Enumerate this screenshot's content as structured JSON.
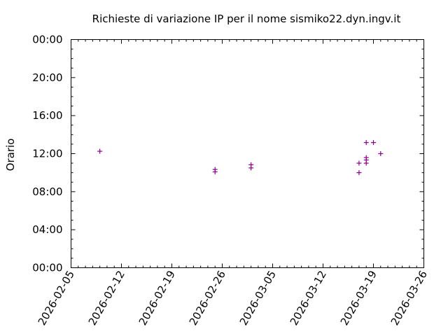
{
  "chart_data": {
    "type": "scatter",
    "title": "Richieste di variazione IP per il nome sismiko22.dyn.ingv.it",
    "xlabel": "",
    "ylabel": "Orario",
    "x_type": "date",
    "xlim": [
      "2026-02-05",
      "2026-03-26"
    ],
    "x_ticks": [
      "2026-02-05",
      "2026-02-12",
      "2026-02-19",
      "2026-02-26",
      "2026-03-05",
      "2026-03-12",
      "2026-03-19",
      "2026-03-26"
    ],
    "ylim": [
      "00:00",
      "24:00"
    ],
    "y_tick_labels": [
      "00:00",
      "04:00",
      "08:00",
      "12:00",
      "16:00",
      "20:00",
      "00:00"
    ],
    "grid": false,
    "legend": "none",
    "marker": "+",
    "marker_color": "#8b008b",
    "points": [
      {
        "x": "2026-02-09 00:00",
        "y": "12:15"
      },
      {
        "x": "2026-02-25 00:00",
        "y": "10:20"
      },
      {
        "x": "2026-02-25 00:00",
        "y": "10:05"
      },
      {
        "x": "2026-03-02 00:00",
        "y": "10:50"
      },
      {
        "x": "2026-03-02 00:00",
        "y": "10:30"
      },
      {
        "x": "2026-03-17 00:00",
        "y": "11:00"
      },
      {
        "x": "2026-03-17 00:00",
        "y": "10:00"
      },
      {
        "x": "2026-03-18 00:00",
        "y": "13:10"
      },
      {
        "x": "2026-03-18 00:00",
        "y": "11:35"
      },
      {
        "x": "2026-03-18 00:00",
        "y": "11:20"
      },
      {
        "x": "2026-03-18 00:00",
        "y": "11:00"
      },
      {
        "x": "2026-03-19 00:00",
        "y": "13:10"
      },
      {
        "x": "2026-03-20 00:00",
        "y": "12:00"
      }
    ]
  }
}
